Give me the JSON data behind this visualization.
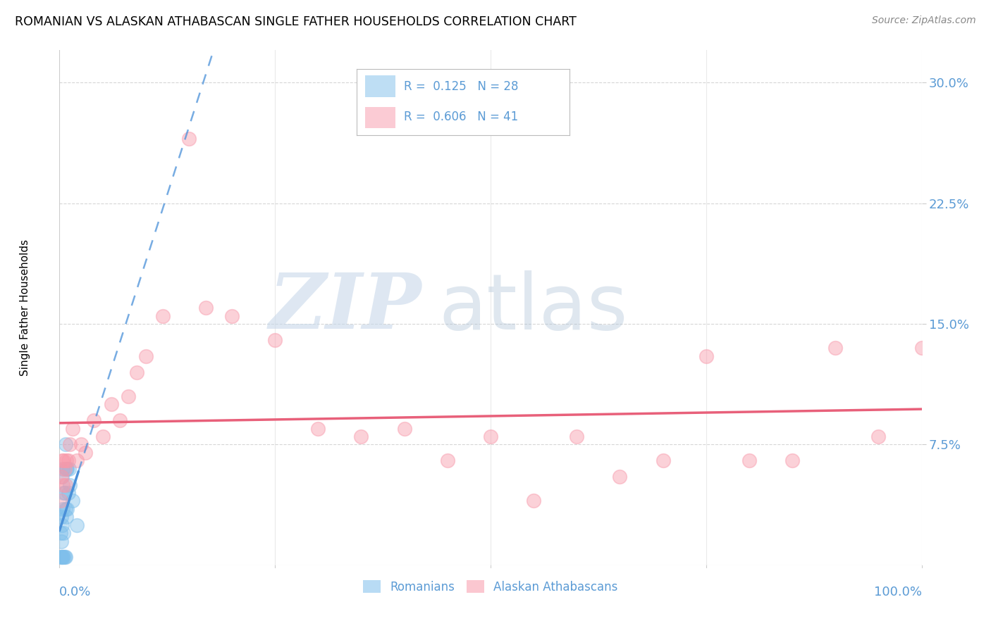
{
  "title": "ROMANIAN VS ALASKAN ATHABASCAN SINGLE FATHER HOUSEHOLDS CORRELATION CHART",
  "source": "Source: ZipAtlas.com",
  "ylabel": "Single Father Households",
  "xlim": [
    0.0,
    1.0
  ],
  "ylim": [
    0.0,
    0.32
  ],
  "yticks": [
    0.075,
    0.15,
    0.225,
    0.3
  ],
  "ytick_labels": [
    "7.5%",
    "15.0%",
    "22.5%",
    "30.0%"
  ],
  "romanian_color": "#7fbfeb",
  "athabascan_color": "#f899aa",
  "romanian_line_color": "#4a90d9",
  "athabascan_line_color": "#e8607a",
  "axis_color": "#5b9bd5",
  "grid_color": "#cccccc",
  "romanian_x": [
    0.001,
    0.001,
    0.002,
    0.002,
    0.002,
    0.003,
    0.003,
    0.003,
    0.004,
    0.004,
    0.004,
    0.005,
    0.005,
    0.005,
    0.006,
    0.006,
    0.007,
    0.007,
    0.007,
    0.008,
    0.008,
    0.009,
    0.009,
    0.01,
    0.011,
    0.012,
    0.015,
    0.02
  ],
  "romanian_y": [
    0.005,
    0.02,
    0.005,
    0.015,
    0.03,
    0.005,
    0.025,
    0.055,
    0.005,
    0.035,
    0.06,
    0.005,
    0.02,
    0.045,
    0.005,
    0.045,
    0.005,
    0.035,
    0.075,
    0.03,
    0.06,
    0.035,
    0.06,
    0.045,
    0.06,
    0.05,
    0.04,
    0.025
  ],
  "athabascan_x": [
    0.001,
    0.002,
    0.003,
    0.004,
    0.005,
    0.006,
    0.007,
    0.008,
    0.01,
    0.012,
    0.015,
    0.02,
    0.025,
    0.03,
    0.04,
    0.05,
    0.06,
    0.07,
    0.08,
    0.09,
    0.1,
    0.12,
    0.15,
    0.17,
    0.2,
    0.25,
    0.3,
    0.35,
    0.4,
    0.45,
    0.5,
    0.55,
    0.6,
    0.65,
    0.7,
    0.75,
    0.8,
    0.85,
    0.9,
    0.95,
    1.0
  ],
  "athabascan_y": [
    0.04,
    0.055,
    0.065,
    0.05,
    0.065,
    0.06,
    0.05,
    0.065,
    0.065,
    0.075,
    0.085,
    0.065,
    0.075,
    0.07,
    0.09,
    0.08,
    0.1,
    0.09,
    0.105,
    0.12,
    0.13,
    0.155,
    0.265,
    0.16,
    0.155,
    0.14,
    0.085,
    0.08,
    0.085,
    0.065,
    0.08,
    0.04,
    0.08,
    0.055,
    0.065,
    0.13,
    0.065,
    0.065,
    0.135,
    0.08,
    0.135
  ],
  "background_color": "#ffffff"
}
